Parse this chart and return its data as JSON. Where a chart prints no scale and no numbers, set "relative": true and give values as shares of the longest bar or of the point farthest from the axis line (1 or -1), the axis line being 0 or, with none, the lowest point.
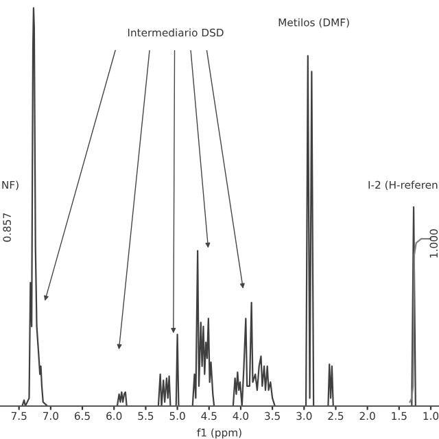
{
  "chart_data": {
    "type": "line",
    "relative": true,
    "xlabel": "f1 (ppm)",
    "xlim": [
      7.8,
      0.87
    ],
    "xticks": [
      {
        "value": 7.5,
        "label": "7.5"
      },
      {
        "value": 7.0,
        "label": "7.0"
      },
      {
        "value": 6.5,
        "label": "6.5"
      },
      {
        "value": 6.0,
        "label": "6.0"
      },
      {
        "value": 5.5,
        "label": "5.5"
      },
      {
        "value": 5.0,
        "label": "5.0"
      },
      {
        "value": 4.5,
        "label": "4.5"
      },
      {
        "value": 4.0,
        "label": "4.0"
      },
      {
        "value": 3.5,
        "label": "3.5"
      },
      {
        "value": 3.0,
        "label": "3.0"
      },
      {
        "value": 2.5,
        "label": "2.5"
      },
      {
        "value": 2.0,
        "label": "2.0"
      },
      {
        "value": 1.5,
        "label": "1.5"
      },
      {
        "value": 1.0,
        "label": "1.0"
      }
    ],
    "grid": false,
    "marker": "none",
    "line_style": "solid",
    "series": [
      {
        "color": "#404040",
        "x": [
          7.8,
          7.45,
          7.42,
          7.4,
          7.34,
          7.32,
          7.3,
          7.28,
          7.27,
          7.26,
          7.24,
          7.22,
          7.19,
          7.17,
          7.155,
          7.14,
          7.12,
          7.05,
          5.95,
          5.92,
          5.9,
          5.88,
          5.86,
          5.84,
          5.82,
          5.8,
          5.3,
          5.27,
          5.25,
          5.22,
          5.2,
          5.17,
          5.15,
          5.13,
          5.11,
          5.02,
          5.0,
          4.98,
          4.76,
          4.73,
          4.71,
          4.68,
          4.66,
          4.63,
          4.61,
          4.59,
          4.57,
          4.55,
          4.53,
          4.51,
          4.49,
          4.47,
          4.44,
          4.42,
          4.12,
          4.09,
          4.07,
          4.05,
          4.03,
          4.01,
          3.98,
          3.95,
          3.92,
          3.9,
          3.86,
          3.83,
          3.81,
          3.77,
          3.74,
          3.71,
          3.68,
          3.66,
          3.63,
          3.61,
          3.58,
          3.56,
          3.53,
          3.5,
          3.46,
          2.97,
          2.94,
          2.91,
          2.88,
          2.85,
          2.62,
          2.6,
          2.58,
          2.56,
          2.54,
          1.3,
          1.27,
          1.24,
          0.87
        ],
        "values": [
          0,
          0,
          0.015,
          0,
          0.02,
          0.31,
          0.2,
          0.9,
          1.0,
          0.95,
          0.4,
          0.2,
          0.13,
          0.08,
          0.1,
          0.05,
          0.01,
          0,
          0,
          0.03,
          0.01,
          0.035,
          0.01,
          0.03,
          0.035,
          0,
          0,
          0.08,
          0,
          0.065,
          0.01,
          0.07,
          0.02,
          0.075,
          0,
          0,
          0.18,
          0,
          0,
          0.08,
          0.02,
          0.39,
          0.05,
          0.21,
          0.1,
          0.2,
          0.08,
          0.16,
          0.12,
          0.22,
          0.06,
          0.11,
          0.03,
          0,
          0,
          0.07,
          0.03,
          0.085,
          0.04,
          0.06,
          0,
          0.1,
          0.22,
          0.05,
          0.05,
          0.26,
          0.06,
          0.08,
          0.04,
          0.1,
          0.125,
          0.05,
          0.1,
          0.04,
          0.1,
          0.04,
          0.06,
          0.02,
          0,
          0,
          0.88,
          0.02,
          0.84,
          0,
          0,
          0.105,
          0.02,
          0.1,
          0,
          0,
          0.5,
          0,
          0
        ]
      },
      {
        "color": "#808080",
        "x": [
          1.33,
          1.3,
          1.28,
          1.27,
          1.26,
          1.23,
          1.15,
          1.0
        ],
        "values": [
          0.01,
          0.02,
          0.05,
          0.2,
          0.38,
          0.41,
          0.42,
          0.42
        ]
      }
    ],
    "annotations": [
      "Intermediario DSD",
      "Metilos (DMF)",
      "I-2 (H-referen",
      "NF)",
      "0.857",
      "1.000"
    ]
  }
}
